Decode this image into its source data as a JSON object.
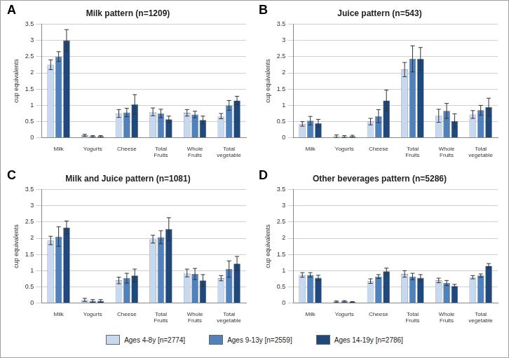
{
  "chart_data": [
    {
      "type": "bar",
      "panel_label": "A",
      "title": "Milk pattern (n=1209)",
      "y_label": "cup equivalents",
      "categories": [
        "Milk",
        "Yogurts",
        "Cheese",
        "Total Fruits",
        "Whole Fruits",
        "Total vegetable"
      ],
      "series": [
        {
          "name": "Ages 4-8y [n=2774]",
          "color": "#c6d9f1",
          "values": [
            2.25,
            0.08,
            0.75,
            0.8,
            0.77,
            0.67
          ],
          "errors": [
            0.15,
            0.03,
            0.12,
            0.12,
            0.1,
            0.08
          ]
        },
        {
          "name": "Ages 9-13y [n=2559]",
          "color": "#4f81bd",
          "values": [
            2.5,
            0.05,
            0.78,
            0.75,
            0.72,
            1.0
          ],
          "errors": [
            0.15,
            0.02,
            0.13,
            0.13,
            0.1,
            0.15
          ]
        },
        {
          "name": "Ages 14-19y [n=2786]",
          "color": "#1f497d",
          "values": [
            3.0,
            0.05,
            1.03,
            0.57,
            0.55,
            1.15
          ],
          "errors": [
            0.33,
            0.02,
            0.3,
            0.1,
            0.12,
            0.13
          ]
        }
      ],
      "ylim": [
        0,
        3.5
      ],
      "yticks": [
        0,
        0.5,
        1,
        1.5,
        2,
        2.5,
        3,
        3.5
      ],
      "grid": true
    },
    {
      "type": "bar",
      "panel_label": "B",
      "title": "Juice pattern (n=543)",
      "y_label": "cup equivalents",
      "categories": [
        "Milk",
        "Yogurts",
        "Cheese",
        "Total Fruits",
        "Whole Fruits",
        "Total vegetable"
      ],
      "series": [
        {
          "name": "Ages 4-8y [n=2774]",
          "color": "#c6d9f1",
          "values": [
            0.43,
            0.05,
            0.5,
            2.1,
            0.68,
            0.72
          ],
          "errors": [
            0.07,
            0.04,
            0.1,
            0.22,
            0.2,
            0.12
          ]
        },
        {
          "name": "Ages 9-13y [n=2559]",
          "color": "#4f81bd",
          "values": [
            0.53,
            0.04,
            0.67,
            2.43,
            0.83,
            0.85
          ],
          "errors": [
            0.13,
            0.03,
            0.2,
            0.4,
            0.23,
            0.15
          ]
        },
        {
          "name": "Ages 14-19y [n=2786]",
          "color": "#1f497d",
          "values": [
            0.45,
            0.05,
            1.15,
            2.43,
            0.52,
            0.95
          ],
          "errors": [
            0.12,
            0.03,
            0.32,
            0.35,
            0.22,
            0.27
          ]
        }
      ],
      "ylim": [
        0,
        3.5
      ],
      "yticks": [
        0,
        0.5,
        1,
        1.5,
        2,
        2.5,
        3,
        3.5
      ],
      "grid": true
    },
    {
      "type": "bar",
      "panel_label": "C",
      "title": "Milk and Juice pattern (n=1081)",
      "y_label": "cup equivalents",
      "categories": [
        "Milk",
        "Yogurts",
        "Cheese",
        "Total Fruits",
        "Whole Fruits",
        "Total vegetable"
      ],
      "series": [
        {
          "name": "Ages 4-8y [n=2774]",
          "color": "#c6d9f1",
          "values": [
            1.93,
            0.1,
            0.7,
            1.97,
            0.93,
            0.77
          ],
          "errors": [
            0.13,
            0.05,
            0.1,
            0.12,
            0.12,
            0.08
          ]
        },
        {
          "name": "Ages 9-13y [n=2559]",
          "color": "#4f81bd",
          "values": [
            2.05,
            0.07,
            0.77,
            2.03,
            0.9,
            1.05
          ],
          "errors": [
            0.3,
            0.04,
            0.15,
            0.2,
            0.17,
            0.25
          ]
        },
        {
          "name": "Ages 14-19y [n=2786]",
          "color": "#1f497d",
          "values": [
            2.33,
            0.07,
            0.85,
            2.28,
            0.7,
            1.22
          ],
          "errors": [
            0.2,
            0.04,
            0.2,
            0.35,
            0.18,
            0.22
          ]
        }
      ],
      "ylim": [
        0,
        3.5
      ],
      "yticks": [
        0,
        0.5,
        1,
        1.5,
        2,
        2.5,
        3,
        3.5
      ],
      "grid": true
    },
    {
      "type": "bar",
      "panel_label": "D",
      "title": "Other beverages pattern (n=5286)",
      "y_label": "cup equivalents",
      "categories": [
        "Milk",
        "Yogurts",
        "Cheese",
        "Total Fruits",
        "Whole Fruits",
        "Total vegetable"
      ],
      "series": [
        {
          "name": "Ages 4-8y [n=2774]",
          "color": "#c6d9f1",
          "values": [
            0.87,
            0.05,
            0.68,
            0.9,
            0.7,
            0.8
          ],
          "errors": [
            0.07,
            0.02,
            0.07,
            0.1,
            0.07,
            0.05
          ]
        },
        {
          "name": "Ages 9-13y [n=2559]",
          "color": "#4f81bd",
          "values": [
            0.87,
            0.06,
            0.82,
            0.82,
            0.62,
            0.85
          ],
          "errors": [
            0.07,
            0.02,
            0.06,
            0.1,
            0.08,
            0.05
          ]
        },
        {
          "name": "Ages 14-19y [n=2786]",
          "color": "#1f497d",
          "values": [
            0.78,
            0.04,
            0.98,
            0.78,
            0.53,
            1.15
          ],
          "errors": [
            0.08,
            0.01,
            0.1,
            0.1,
            0.05,
            0.07
          ]
        }
      ],
      "ylim": [
        0,
        3.5
      ],
      "yticks": [
        0,
        0.5,
        1,
        1.5,
        2,
        2.5,
        3,
        3.5
      ],
      "grid": true
    }
  ]
}
